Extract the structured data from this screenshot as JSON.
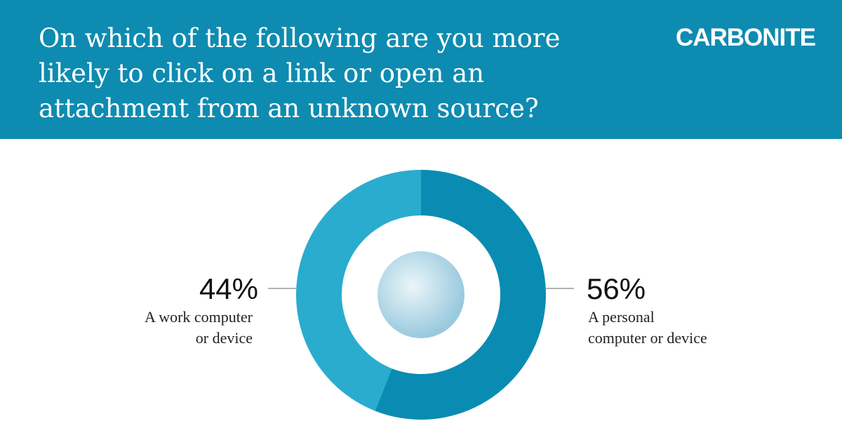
{
  "brand": "CARBONITE",
  "chart_data": {
    "type": "donut",
    "title": "On which of the following are you more likely to click on a link or open an attachment from an unknown source?",
    "categories": [
      "A personal computer or device",
      "A work computer or device"
    ],
    "values": [
      56,
      44
    ],
    "value_labels": [
      "56%",
      "44%"
    ],
    "colors": [
      "#0a8cb2",
      "#2aaccf"
    ]
  }
}
